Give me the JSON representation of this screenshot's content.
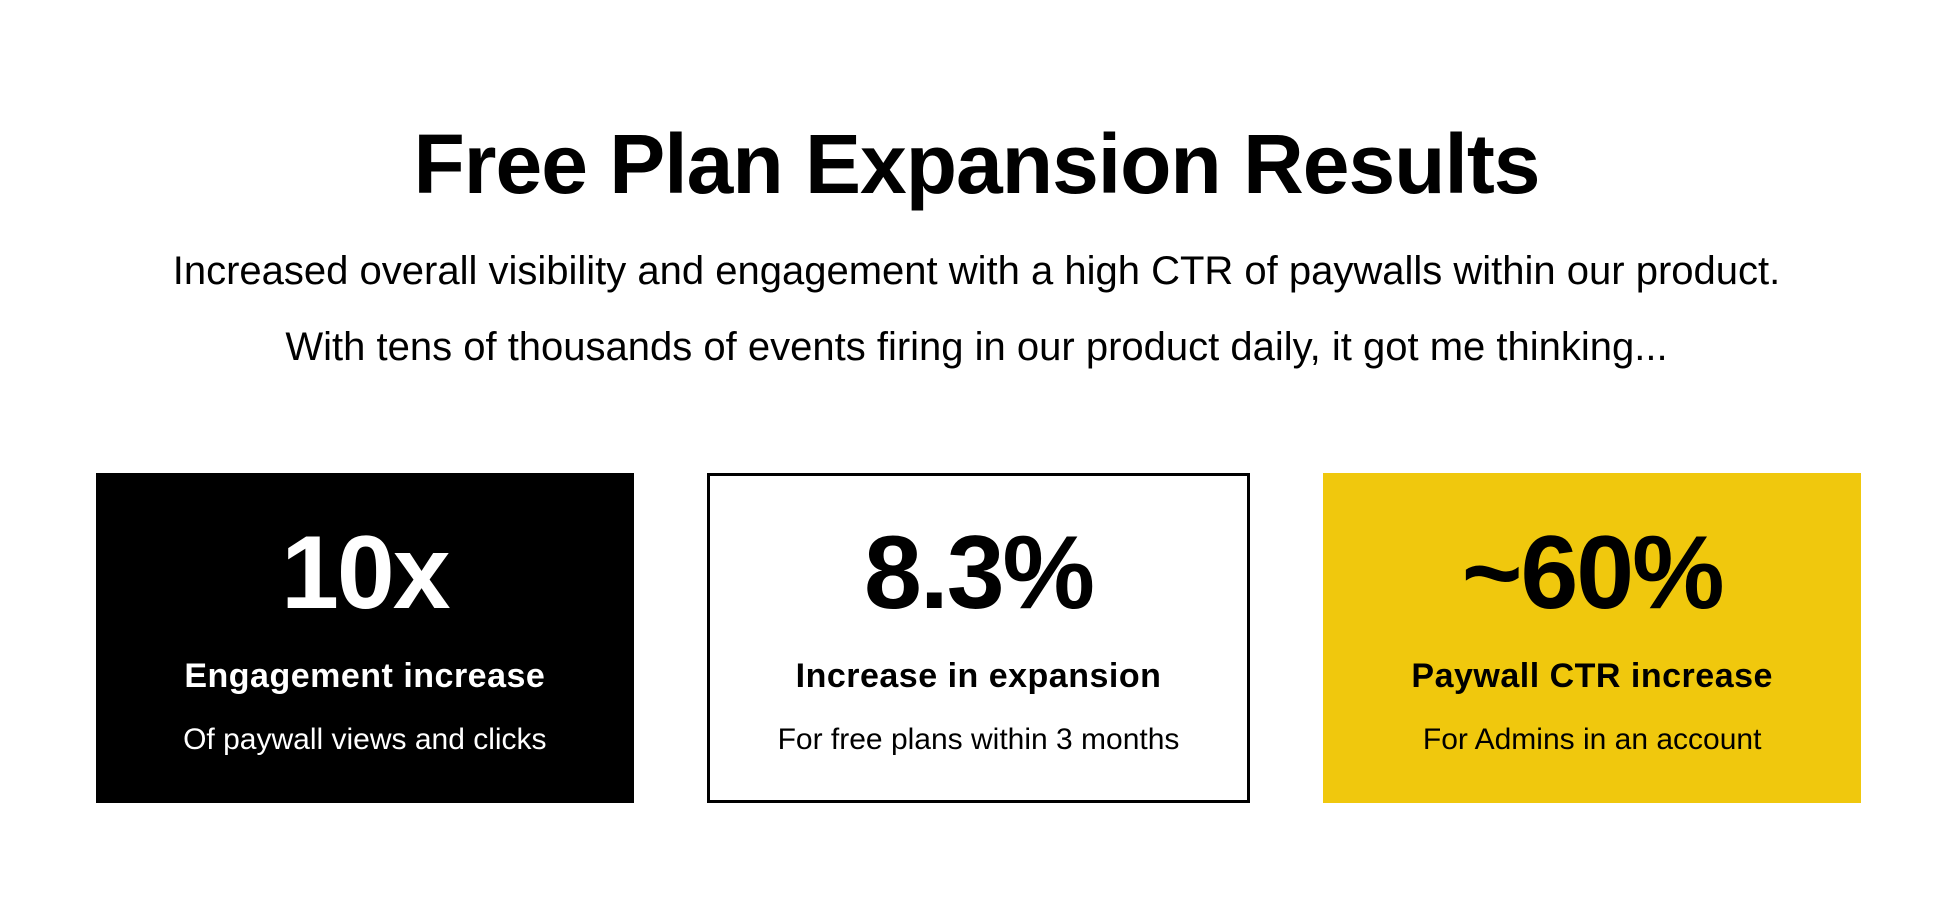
{
  "slide": {
    "title": "Free Plan Expansion Results",
    "subtitle_line1": "Increased overall visibility and engagement with a high CTR of paywalls within our product.",
    "subtitle_line2": "With tens of thousands of events firing in our product daily, it got me thinking...",
    "stats": [
      {
        "value": "10x",
        "label": "Engagement increase",
        "sublabel": "Of paywall views and clicks",
        "style": "black"
      },
      {
        "value": "8.3%",
        "label": "Increase in expansion",
        "sublabel": "For free plans within 3 months",
        "style": "outline"
      },
      {
        "value": "~60%",
        "label": "Paywall CTR increase",
        "sublabel": "For Admins in an account",
        "style": "yellow"
      }
    ],
    "colors": {
      "background": "#FFFFFF",
      "card-black": "#000000",
      "card-yellow": "#F0C80D",
      "card-outline-border": "#000000",
      "text-on-black": "#FFFFFF",
      "text-dark": "#000000"
    }
  }
}
